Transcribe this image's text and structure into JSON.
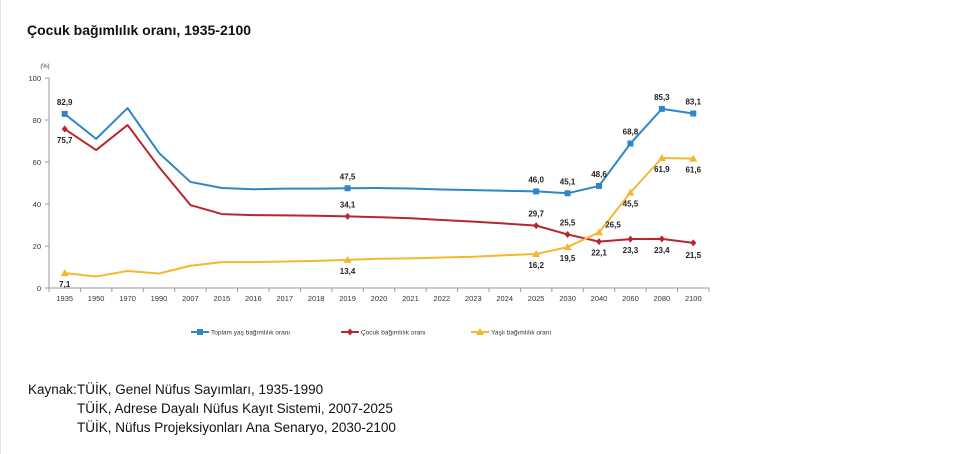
{
  "title": "Çocuk bağımlılık oranı, 1935-2100",
  "chart_data": {
    "type": "line",
    "title": "Çocuk bağımlılık oranı, 1935-2100",
    "xlabel": "",
    "ylabel": "(%)",
    "ylim": [
      0,
      100
    ],
    "yticks": [
      0,
      20,
      40,
      60,
      80,
      100
    ],
    "grid": false,
    "legend_position": "bottom",
    "categories": [
      "1935",
      "1950",
      "1970",
      "1990",
      "2007",
      "2015",
      "2016",
      "2017",
      "2018",
      "2019",
      "2020",
      "2021",
      "2022",
      "2023",
      "2024",
      "2025",
      "2030",
      "2040",
      "2060",
      "2080",
      "2100"
    ],
    "series": [
      {
        "name": "Toplam yaş bağımlılık oranı",
        "color": "#2e86c8",
        "marker": "square",
        "values": [
          82.9,
          71.0,
          85.7,
          64.3,
          50.5,
          47.6,
          47.0,
          47.3,
          47.3,
          47.5,
          47.6,
          47.4,
          46.9,
          46.6,
          46.3,
          46.0,
          45.1,
          48.6,
          68.8,
          85.3,
          83.1
        ],
        "labels": {
          "0": "82,9",
          "9": "47,5",
          "15": "46,0",
          "16": "45,1",
          "17": "48,6",
          "18": "68,8",
          "19": "85,3",
          "20": "83,1"
        }
      },
      {
        "name": "Çocuk bağımlılık oranı",
        "color": "#b8262e",
        "marker": "diamond",
        "values": [
          75.7,
          65.7,
          77.6,
          57.6,
          39.5,
          35.2,
          34.7,
          34.6,
          34.4,
          34.1,
          33.7,
          33.2,
          32.4,
          31.6,
          30.7,
          29.7,
          25.5,
          22.1,
          23.3,
          23.4,
          21.5
        ],
        "labels": {
          "0": "75,7",
          "9": "34,1",
          "15": "29,7",
          "16": "25,5",
          "17": "22,1",
          "18": "23,3",
          "19": "23,4",
          "20": "21,5"
        }
      },
      {
        "name": "Yaşlı bağımlılık oranı",
        "color": "#f5b731",
        "marker": "triangle",
        "values": [
          7.1,
          5.5,
          8.1,
          6.9,
          10.6,
          12.3,
          12.3,
          12.6,
          12.9,
          13.4,
          13.9,
          14.1,
          14.5,
          14.9,
          15.6,
          16.2,
          19.5,
          26.5,
          45.5,
          61.9,
          61.6
        ],
        "labels": {
          "0": "7,1",
          "9": "13,4",
          "15": "16,2",
          "16": "19,5",
          "17": "26,5",
          "18": "45,5",
          "19": "61,9",
          "20": "61,6"
        }
      }
    ]
  },
  "source": {
    "label": "Kaynak:",
    "lines": [
      "TÜİK, Genel Nüfus Sayımları, 1935-1990",
      "TÜİK, Adrese Dayalı Nüfus Kayıt Sistemi, 2007-2025",
      "TÜİK, Nüfus Projeksiyonları Ana Senaryo, 2030-2100"
    ]
  }
}
